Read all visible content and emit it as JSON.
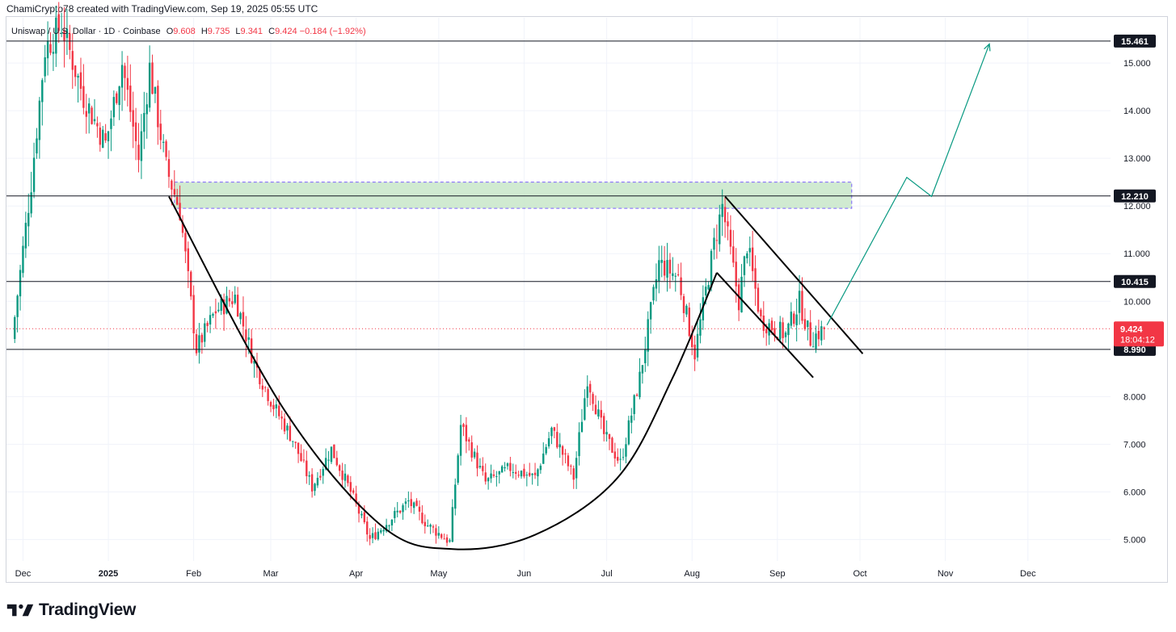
{
  "header": {
    "attribution": "ChamiCrypto78 created with TradingView.com, Sep 19, 2025 05:55 UTC"
  },
  "legend": {
    "symbol": "Uniswap / U.S. Dollar · 1D · Coinbase",
    "o_label": "O",
    "o": "9.608",
    "h_label": "H",
    "h": "9.735",
    "l_label": "L",
    "l": "9.341",
    "c_label": "C",
    "c": "9.424",
    "change": "−0.184 (−1.92%)"
  },
  "brand": {
    "name": "TradingView",
    "logo": "tradingview-logo-icon"
  },
  "colors": {
    "up": "#089981",
    "down": "#f23645",
    "zone_fill": "#c8e6c9",
    "zone_border": "#7b61ff",
    "projection": "#089981",
    "pattern": "#000000"
  },
  "chart_data": {
    "type": "candlestick",
    "y_axis": {
      "ticks": [
        "15.000",
        "14.000",
        "13.000",
        "12.000",
        "11.000",
        "10.000",
        "8.000",
        "7.000",
        "6.000",
        "5.000"
      ],
      "ylim": [
        4.55,
        15.95
      ],
      "position": "right"
    },
    "x_axis": {
      "ticks": [
        "Dec",
        "2025",
        "Feb",
        "Mar",
        "Apr",
        "May",
        "Jun",
        "Jul",
        "Aug",
        "Sep",
        "Oct",
        "Nov",
        "Dec"
      ]
    },
    "price_levels": [
      {
        "label": "15.461",
        "value": 15.461,
        "style": "line"
      },
      {
        "label": "12.210",
        "value": 12.21,
        "style": "line"
      },
      {
        "label": "10.415",
        "value": 10.415,
        "style": "line"
      },
      {
        "label": "8.990",
        "value": 8.99,
        "style": "line"
      }
    ],
    "current_price": {
      "label": "9.424",
      "countdown": "18:04:12",
      "value": 9.424
    },
    "zone": {
      "from": 11.95,
      "to": 12.5,
      "start": "2025-01-25",
      "end": "2025-09-28"
    },
    "candle_anchors": [
      {
        "date": "2024-11-28",
        "close": 9.2
      },
      {
        "date": "2024-12-05",
        "close": 12.5
      },
      {
        "date": "2024-12-10",
        "close": 15.3
      },
      {
        "date": "2024-12-16",
        "close": 15.8
      },
      {
        "date": "2024-12-24",
        "close": 14.3
      },
      {
        "date": "2025-01-01",
        "close": 13.3
      },
      {
        "date": "2025-01-07",
        "close": 15.0
      },
      {
        "date": "2025-01-13",
        "close": 13.0
      },
      {
        "date": "2025-01-17",
        "close": 14.9
      },
      {
        "date": "2025-01-23",
        "close": 12.8
      },
      {
        "date": "2025-01-28",
        "close": 11.9
      },
      {
        "date": "2025-02-03",
        "close": 9.0
      },
      {
        "date": "2025-02-10",
        "close": 9.8
      },
      {
        "date": "2025-02-17",
        "close": 10.1
      },
      {
        "date": "2025-02-24",
        "close": 8.7
      },
      {
        "date": "2025-03-03",
        "close": 7.8
      },
      {
        "date": "2025-03-10",
        "close": 7.1
      },
      {
        "date": "2025-03-17",
        "close": 6.1
      },
      {
        "date": "2025-03-24",
        "close": 6.9
      },
      {
        "date": "2025-03-31",
        "close": 6.0
      },
      {
        "date": "2025-04-07",
        "close": 5.0
      },
      {
        "date": "2025-04-14",
        "close": 5.4
      },
      {
        "date": "2025-04-21",
        "close": 5.8
      },
      {
        "date": "2025-04-28",
        "close": 5.3
      },
      {
        "date": "2025-05-06",
        "close": 4.95
      },
      {
        "date": "2025-05-10",
        "close": 7.4
      },
      {
        "date": "2025-05-19",
        "close": 6.2
      },
      {
        "date": "2025-05-28",
        "close": 6.5
      },
      {
        "date": "2025-06-06",
        "close": 6.3
      },
      {
        "date": "2025-06-12",
        "close": 7.3
      },
      {
        "date": "2025-06-20",
        "close": 6.3
      },
      {
        "date": "2025-06-25",
        "close": 8.4
      },
      {
        "date": "2025-07-01",
        "close": 7.2
      },
      {
        "date": "2025-07-07",
        "close": 6.6
      },
      {
        "date": "2025-07-14",
        "close": 8.4
      },
      {
        "date": "2025-07-21",
        "close": 10.8
      },
      {
        "date": "2025-07-28",
        "close": 10.5
      },
      {
        "date": "2025-08-03",
        "close": 8.9
      },
      {
        "date": "2025-08-10",
        "close": 11.2
      },
      {
        "date": "2025-08-13",
        "close": 12.0
      },
      {
        "date": "2025-08-19",
        "close": 10.0
      },
      {
        "date": "2025-08-22",
        "close": 11.2
      },
      {
        "date": "2025-08-27",
        "close": 9.6
      },
      {
        "date": "2025-09-05",
        "close": 9.3
      },
      {
        "date": "2025-09-10",
        "close": 10.0
      },
      {
        "date": "2025-09-14",
        "close": 9.2
      },
      {
        "date": "2025-09-19",
        "close": 9.424
      }
    ],
    "cup": [
      {
        "date": "2025-01-23",
        "value": 12.2
      },
      {
        "date": "2025-03-05",
        "value": 7.8
      },
      {
        "date": "2025-04-10",
        "value": 5.3
      },
      {
        "date": "2025-05-06",
        "value": 4.8
      },
      {
        "date": "2025-06-05",
        "value": 5.1
      },
      {
        "date": "2025-07-05",
        "value": 6.3
      },
      {
        "date": "2025-07-25",
        "value": 8.4
      },
      {
        "date": "2025-08-10",
        "value": 10.6
      }
    ],
    "handle_upper": [
      {
        "date": "2025-08-13",
        "value": 12.2
      },
      {
        "date": "2025-10-02",
        "value": 8.9
      }
    ],
    "handle_lower": [
      {
        "date": "2025-08-10",
        "value": 10.6
      },
      {
        "date": "2025-09-14",
        "value": 8.4
      }
    ],
    "projection": [
      {
        "date": "2025-09-19",
        "value": 9.5
      },
      {
        "date": "2025-10-18",
        "value": 12.6
      },
      {
        "date": "2025-10-27",
        "value": 12.2
      },
      {
        "date": "2025-11-17",
        "value": 15.4
      }
    ]
  }
}
